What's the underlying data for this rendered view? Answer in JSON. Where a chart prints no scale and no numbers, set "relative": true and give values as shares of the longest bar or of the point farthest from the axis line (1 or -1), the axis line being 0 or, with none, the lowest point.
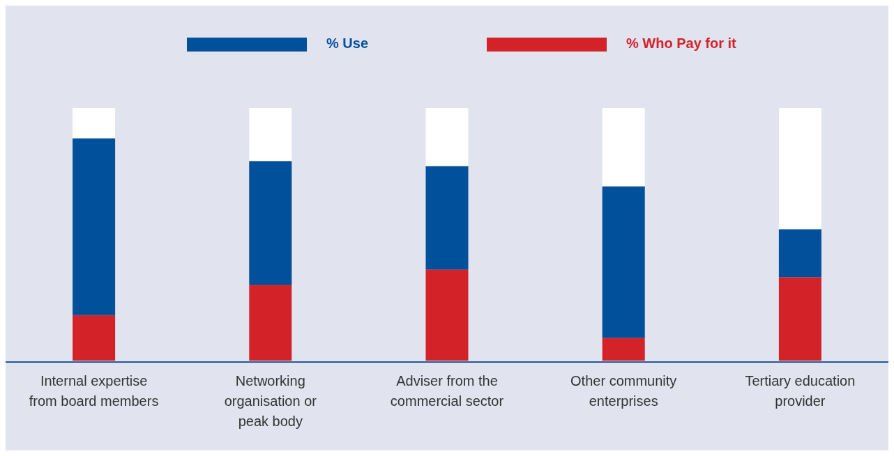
{
  "chart_data": {
    "type": "bar",
    "stacked": true,
    "relative": true,
    "legend": "top",
    "categories": [
      "Internal expertise from board members",
      "Networking organisation or peak body",
      "Adviser from the commercial sector",
      "Other community enterprises",
      "Tertiary education provider"
    ],
    "series": [
      {
        "name": "% Who Pay for it",
        "color": "#d42229",
        "values": [
          0.18,
          0.3,
          0.36,
          0.09,
          0.33
        ]
      },
      {
        "name": "% Use",
        "color": "#00509b",
        "values": [
          0.7,
          0.49,
          0.41,
          0.6,
          0.19
        ]
      },
      {
        "color": "#ffffff",
        "values": [
          0.12,
          0.21,
          0.23,
          0.31,
          0.48
        ]
      }
    ]
  }
}
